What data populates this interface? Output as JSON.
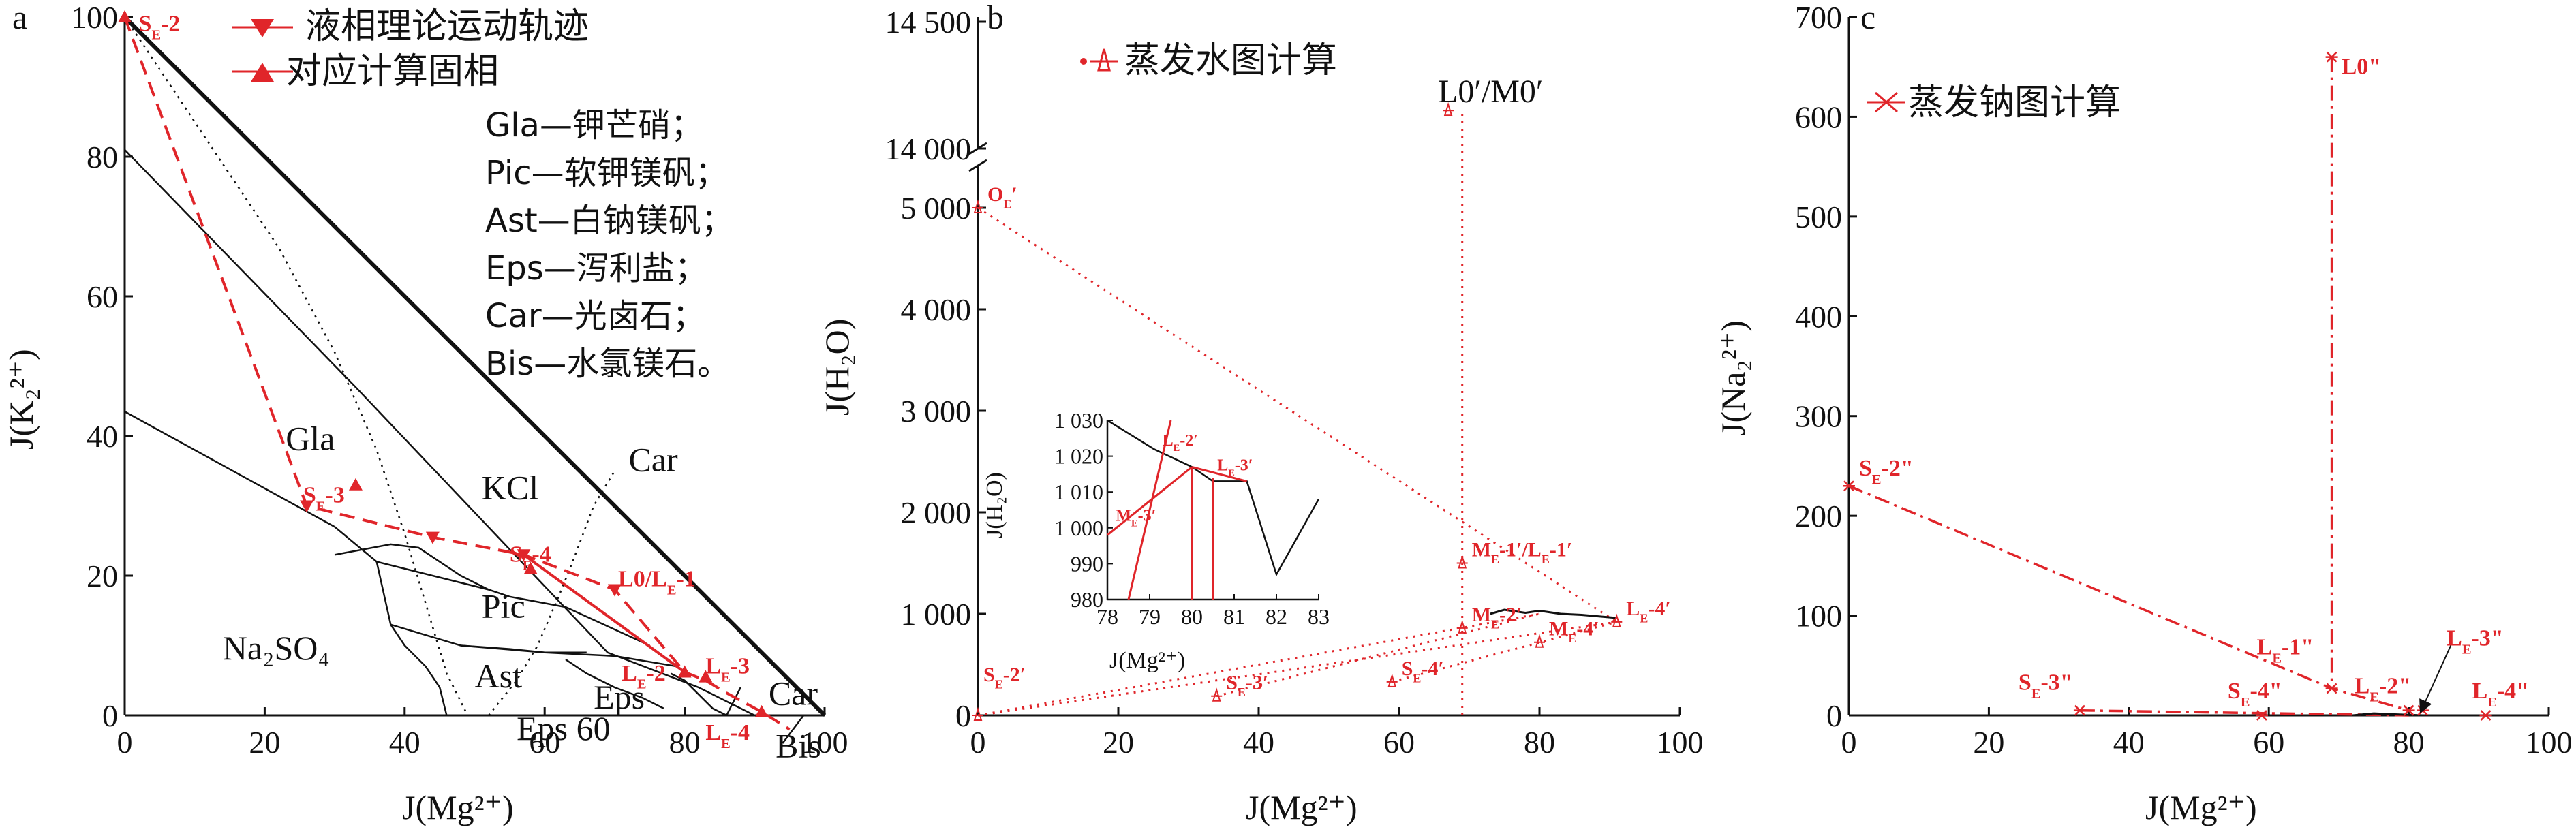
{
  "colors": {
    "red": "#e0252a",
    "black": "#111111"
  },
  "chart_data": [
    {
      "type": "phase-diagram",
      "panel_label": "a",
      "xlabel": "J(Mg²⁺)",
      "ylabel": "J(K₂²⁺)",
      "xlim": [
        0,
        100
      ],
      "ylim": [
        0,
        100
      ],
      "x_ticks": [
        0,
        20,
        40,
        60,
        80,
        100
      ],
      "y_ticks": [
        0,
        20,
        40,
        60,
        80,
        100
      ],
      "legend": [
        {
          "marker": "triangle-down",
          "label": "液相理论运动轨迹"
        },
        {
          "marker": "triangle-up",
          "label": "对应计算固相"
        }
      ],
      "abbreviations": [
        "Gla—钾芒硝；",
        "Pic—软钾镁矾；",
        "Ast—白钠镁矾；",
        "Eps—泻利盐；",
        "Car—光卤石；",
        "Bis—水氯镁石。"
      ],
      "field_labels": [
        {
          "text": "Gla",
          "x": 23,
          "y": 38
        },
        {
          "text": "KCl",
          "x": 51,
          "y": 31
        },
        {
          "text": "Car",
          "x": 72,
          "y": 35
        },
        {
          "text": "Pic",
          "x": 51,
          "y": 14
        },
        {
          "text": "Na₂SO₄",
          "x": 14,
          "y": 8
        },
        {
          "text": "Ast",
          "x": 50,
          "y": 4
        },
        {
          "text": "Eps",
          "x": 67,
          "y": 1
        },
        {
          "text": "Car",
          "x": 92,
          "y": 1.5
        },
        {
          "text": "Bis",
          "x": 93,
          "y": -6
        },
        {
          "text": "Eps 60",
          "x": 56,
          "y": -3.5
        }
      ],
      "point_labels": [
        {
          "base": "S",
          "sub": "E",
          "suffix": "-2",
          "x": 2,
          "y": 98
        },
        {
          "base": "S",
          "sub": "E",
          "suffix": "-3",
          "x": 25.5,
          "y": 30.5
        },
        {
          "base": "S",
          "sub": "E",
          "suffix": "-4",
          "x": 55,
          "y": 22
        },
        {
          "base": "L0/L",
          "sub": "E",
          "suffix": "-1",
          "x": 70.5,
          "y": 18.5
        },
        {
          "base": "L",
          "sub": "E",
          "suffix": "-2",
          "x": 71,
          "y": 5
        },
        {
          "base": "L",
          "sub": "E",
          "suffix": "-3",
          "x": 83,
          "y": 6
        },
        {
          "base": "L",
          "sub": "E",
          "suffix": "-4",
          "x": 83,
          "y": -3.5
        }
      ],
      "boundaries": [
        [
          [
            0,
            100
          ],
          [
            100,
            0
          ]
        ],
        [
          [
            0,
            81
          ],
          [
            33,
            47
          ],
          [
            69,
            9
          ],
          [
            82,
            4
          ],
          [
            90,
            0
          ]
        ],
        [
          [
            0,
            43.5
          ],
          [
            30,
            27
          ],
          [
            36,
            22
          ],
          [
            52,
            18
          ],
          [
            55,
            17
          ],
          [
            63,
            15.5
          ],
          [
            75,
            10
          ]
        ],
        [
          [
            30,
            23
          ],
          [
            38,
            24.5
          ],
          [
            42,
            24
          ],
          [
            48,
            20
          ],
          [
            52,
            18
          ]
        ],
        [
          [
            36,
            22
          ],
          [
            38,
            13
          ],
          [
            48,
            10
          ],
          [
            55,
            9.5
          ],
          [
            60,
            9
          ],
          [
            66,
            9
          ]
        ],
        [
          [
            38,
            13
          ],
          [
            40,
            10
          ],
          [
            43,
            7
          ],
          [
            45,
            4
          ],
          [
            46,
            0
          ]
        ],
        [
          [
            48,
            10
          ],
          [
            60,
            9
          ],
          [
            70,
            8.5
          ],
          [
            79,
            7
          ]
        ],
        [
          [
            63,
            8
          ],
          [
            66,
            6
          ],
          [
            70,
            4
          ],
          [
            74,
            2.5
          ],
          [
            77,
            1
          ]
        ],
        [
          [
            78,
            6
          ],
          [
            80,
            5
          ],
          [
            82,
            3
          ],
          [
            84,
            1
          ],
          [
            86,
            0
          ]
        ],
        [
          [
            86,
            0
          ],
          [
            88,
            4
          ]
        ],
        [
          [
            94,
            -4
          ],
          [
            97,
            0
          ]
        ]
      ],
      "dotted_lines": [
        [
          [
            0,
            100
          ],
          [
            12,
            82
          ],
          [
            22,
            67
          ],
          [
            30,
            52
          ],
          [
            36,
            38
          ],
          [
            40,
            26
          ],
          [
            43,
            16
          ],
          [
            46,
            6
          ],
          [
            49,
            0
          ]
        ],
        [
          [
            52,
            0
          ],
          [
            56,
            5
          ],
          [
            59,
            10
          ],
          [
            62,
            17
          ],
          [
            64,
            22
          ],
          [
            67,
            30
          ],
          [
            70,
            35
          ]
        ]
      ],
      "liquid_trajectory": [
        [
          0,
          100
        ],
        [
          26,
          30
        ],
        [
          44,
          25.5
        ],
        [
          57,
          23
        ],
        [
          70,
          18
        ],
        [
          80,
          6.2
        ],
        [
          83,
          5
        ],
        [
          86,
          3.2
        ],
        [
          91,
          0.5
        ],
        [
          95,
          -2
        ]
      ],
      "solid_points": [
        [
          0,
          100
        ],
        [
          33,
          33
        ],
        [
          58,
          21
        ],
        [
          80,
          6.2
        ],
        [
          83,
          5.5
        ],
        [
          91,
          0.5
        ]
      ],
      "solid_line": [
        [
          57,
          23
        ],
        [
          80,
          6.2
        ]
      ]
    },
    {
      "type": "line",
      "panel_label": "b",
      "title": "蒸发水图计算",
      "xlabel": "J(Mg²⁺)",
      "ylabel": "J(H₂O)",
      "xlim": [
        0,
        100
      ],
      "ylim_lower": [
        0,
        5300
      ],
      "ylim_upper": [
        14000,
        14500
      ],
      "x_ticks": [
        0,
        20,
        40,
        60,
        80,
        100
      ],
      "y_ticks_lower": [
        "0",
        "1 000",
        "2 000",
        "3 000",
        "4 000",
        "5 000"
      ],
      "y_ticks_upper": [
        "14 000",
        "14 500"
      ],
      "points": [
        {
          "base": "L0′/M0′",
          "sub": "",
          "suffix": "",
          "x": 67,
          "y": 14150
        },
        {
          "base": "O",
          "sub": "E",
          "suffix": "′",
          "x": 0,
          "y": 5000
        },
        {
          "base": "M",
          "sub": "E",
          "suffix": "-1′/L",
          "sub2": "E",
          "suffix2": "-1′",
          "x": 69,
          "y": 1500
        },
        {
          "base": "M",
          "sub": "E",
          "suffix": "-2′",
          "x": 69,
          "y": 860
        },
        {
          "base": "M",
          "sub": "E",
          "suffix": "-4′",
          "x": 80,
          "y": 720
        },
        {
          "base": "L",
          "sub": "E",
          "suffix": "-4′",
          "x": 91,
          "y": 920
        },
        {
          "base": "S",
          "sub": "E",
          "suffix": "-2′",
          "x": 0,
          "y": 0
        },
        {
          "base": "S",
          "sub": "E",
          "suffix": "-3′",
          "x": 34,
          "y": 190
        },
        {
          "base": "S",
          "sub": "E",
          "suffix": "-4′",
          "x": 59,
          "y": 330
        }
      ],
      "dotted_lines": [
        [
          [
            0,
            5000
          ],
          [
            91,
            920
          ]
        ],
        [
          [
            69,
            0
          ],
          [
            69,
            14150
          ]
        ],
        [
          [
            0,
            0
          ],
          [
            80,
            1000
          ]
        ],
        [
          [
            0,
            0
          ],
          [
            91,
            920
          ]
        ],
        [
          [
            34,
            190
          ],
          [
            80,
            1000
          ]
        ],
        [
          [
            59,
            330
          ],
          [
            91,
            920
          ]
        ]
      ],
      "solid_curve": [
        [
          73,
          1000
        ],
        [
          75,
          1040
        ],
        [
          78,
          1010
        ],
        [
          80,
          1030
        ],
        [
          83,
          1000
        ],
        [
          86,
          990
        ],
        [
          91,
          960
        ]
      ],
      "inset": {
        "xlabel": "J(Mg²⁺)",
        "ylabel": "J(H₂O)",
        "xlim": [
          78,
          83
        ],
        "ylim": [
          980,
          1030
        ],
        "x_ticks": [
          "78",
          "79",
          "80",
          "81",
          "82",
          "83"
        ],
        "y_ticks": [
          "980",
          "990",
          "1 000",
          "1 010",
          "1 020",
          "1 030"
        ],
        "black_curve": [
          [
            78,
            1030
          ],
          [
            79.1,
            1022
          ],
          [
            80,
            1017
          ],
          [
            80.5,
            1013
          ],
          [
            81.3,
            1013
          ],
          [
            82,
            987
          ],
          [
            83,
            1008
          ]
        ],
        "red_lines": [
          [
            [
              78,
              998
            ],
            [
              80,
              1017
            ]
          ],
          [
            [
              80,
              1017
            ],
            [
              81.3,
              1013
            ]
          ],
          [
            [
              79.5,
              1030
            ],
            [
              78.5,
              980
            ]
          ],
          [
            [
              80,
              1017
            ],
            [
              80,
              980
            ]
          ],
          [
            [
              80.5,
              1014
            ],
            [
              80.5,
              980
            ]
          ]
        ],
        "labels": [
          {
            "base": "L",
            "sub": "E",
            "suffix": "-2′",
            "x": 79.3,
            "y": 1023
          },
          {
            "base": "L",
            "sub": "E",
            "suffix": "-3′",
            "x": 80.6,
            "y": 1016
          },
          {
            "base": "M",
            "sub": "E",
            "suffix": "-3′",
            "x": 78.2,
            "y": 1002
          }
        ]
      }
    },
    {
      "type": "line",
      "panel_label": "c",
      "title": "蒸发钠图计算",
      "xlabel": "J(Mg²⁺)",
      "ylabel": "J(Na₂²⁺)",
      "xlim": [
        0,
        100
      ],
      "ylim": [
        0,
        700
      ],
      "x_ticks": [
        0,
        20,
        40,
        60,
        80,
        100
      ],
      "y_ticks": [
        0,
        100,
        200,
        300,
        400,
        500,
        600,
        700
      ],
      "points": [
        {
          "base": "L0\"",
          "sub": "",
          "suffix": "",
          "x": 69,
          "y": 660
        },
        {
          "base": "S",
          "sub": "E",
          "suffix": "-2\"",
          "x": 0,
          "y": 230
        },
        {
          "base": "L",
          "sub": "E",
          "suffix": "-1\"",
          "x": 69,
          "y": 27
        },
        {
          "base": "L",
          "sub": "E",
          "suffix": "-2\"",
          "x": 80,
          "y": 5
        },
        {
          "base": "L",
          "sub": "E",
          "suffix": "-3\"",
          "x": 82,
          "y": 5
        },
        {
          "base": "L",
          "sub": "E",
          "suffix": "-4\"",
          "x": 91,
          "y": 0
        },
        {
          "base": "S",
          "sub": "E",
          "suffix": "-3\"",
          "x": 33,
          "y": 5
        },
        {
          "base": "S",
          "sub": "E",
          "suffix": "-4\"",
          "x": 59,
          "y": 0
        }
      ],
      "dashdot_lines": [
        [
          [
            0,
            230
          ],
          [
            69,
            27
          ],
          [
            80,
            5
          ]
        ],
        [
          [
            69,
            660
          ],
          [
            69,
            27
          ]
        ],
        [
          [
            33,
            5
          ],
          [
            80,
            0
          ]
        ]
      ],
      "solid_curve": [
        [
          72,
          0
        ],
        [
          75,
          2
        ],
        [
          78,
          1
        ],
        [
          82,
          0
        ]
      ]
    }
  ]
}
